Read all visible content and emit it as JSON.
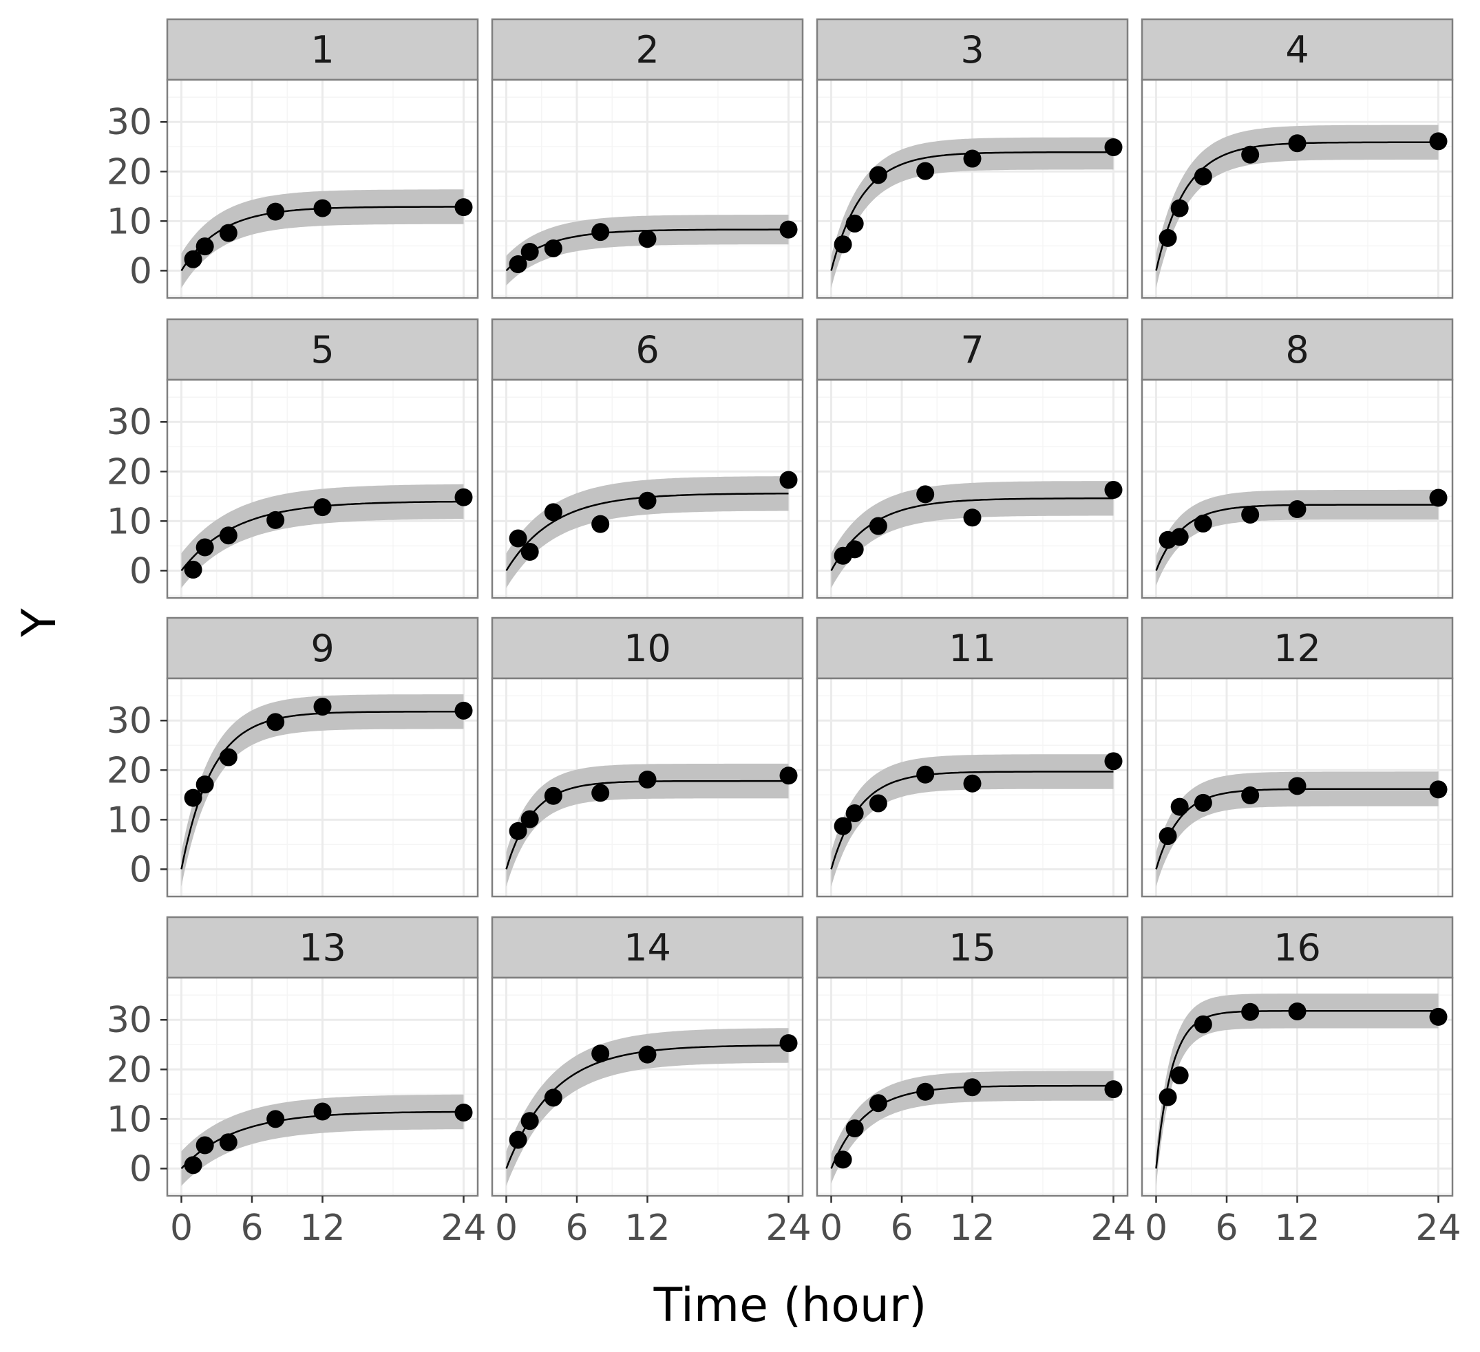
{
  "chart_data": {
    "type": "scatter",
    "layout": "facet_wrap 4x4",
    "xlabel": "Time (hour)",
    "ylabel": "Y",
    "x_ticks": [
      0,
      6,
      12,
      24
    ],
    "y_ticks": [
      0,
      10,
      20,
      30
    ],
    "xlim": [
      -1.2,
      25.2
    ],
    "ylim": [
      -5.5,
      38.5
    ],
    "grid": true,
    "legend": "none",
    "colors": {
      "strip_fill": "#cccccc",
      "panel_border": "#7f7f7f",
      "grid_major": "#ebebeb",
      "grid_minor": "#f5f5f5",
      "ribbon": "#c2c2c2",
      "line": "#000000",
      "points": "#000000"
    },
    "panels": [
      {
        "label": "1",
        "ymax": 12.9,
        "k": 0.3,
        "lo": -3.5,
        "hi": 3.5,
        "x": [
          1,
          2,
          4,
          8,
          12,
          24
        ],
        "y": [
          2.3,
          4.9,
          7.6,
          11.9,
          12.6,
          12.8
        ]
      },
      {
        "label": "2",
        "ymax": 8.3,
        "k": 0.3,
        "lo": -3.0,
        "hi": 3.0,
        "x": [
          1,
          2,
          4,
          8,
          12,
          24
        ],
        "y": [
          1.3,
          3.8,
          4.5,
          7.8,
          6.4,
          8.3
        ]
      },
      {
        "label": "3",
        "ymax": 23.9,
        "k": 0.38,
        "lo": -3.5,
        "hi": 3.0,
        "x": [
          1,
          2,
          4,
          8,
          12,
          24
        ],
        "y": [
          5.3,
          9.5,
          19.3,
          20.1,
          22.6,
          24.9
        ]
      },
      {
        "label": "4",
        "ymax": 25.9,
        "k": 0.4,
        "lo": -3.5,
        "hi": 3.5,
        "x": [
          1,
          2,
          4,
          8,
          12,
          24
        ],
        "y": [
          6.6,
          12.6,
          19.0,
          23.4,
          25.7,
          26.1
        ]
      },
      {
        "label": "5",
        "ymax": 14.0,
        "k": 0.22,
        "lo": -3.5,
        "hi": 3.5,
        "x": [
          1,
          2,
          4,
          8,
          12,
          24
        ],
        "y": [
          0.2,
          4.7,
          7.1,
          10.2,
          12.8,
          14.8
        ]
      },
      {
        "label": "6",
        "ymax": 15.6,
        "k": 0.25,
        "lo": -3.5,
        "hi": 3.5,
        "x": [
          1,
          2,
          4,
          8,
          12,
          24
        ],
        "y": [
          6.5,
          3.8,
          11.8,
          9.4,
          14.1,
          18.3
        ]
      },
      {
        "label": "7",
        "ymax": 14.6,
        "k": 0.3,
        "lo": -3.5,
        "hi": 3.5,
        "x": [
          1,
          2,
          4,
          8,
          12,
          24
        ],
        "y": [
          3.0,
          4.3,
          9.0,
          15.4,
          10.7,
          16.3
        ]
      },
      {
        "label": "8",
        "ymax": 13.3,
        "k": 0.45,
        "lo": -3.0,
        "hi": 3.0,
        "x": [
          1,
          2,
          4,
          8,
          12,
          24
        ],
        "y": [
          6.2,
          6.8,
          9.5,
          11.3,
          12.4,
          14.7
        ]
      },
      {
        "label": "9",
        "ymax": 31.8,
        "k": 0.38,
        "lo": -3.5,
        "hi": 3.5,
        "x": [
          1,
          2,
          4,
          8,
          12,
          24
        ],
        "y": [
          14.4,
          17.1,
          22.6,
          29.7,
          32.8,
          32.0
        ]
      },
      {
        "label": "10",
        "ymax": 17.8,
        "k": 0.45,
        "lo": -3.5,
        "hi": 3.5,
        "x": [
          1,
          2,
          4,
          8,
          12,
          24
        ],
        "y": [
          7.7,
          10.1,
          14.8,
          15.4,
          18.1,
          18.9
        ]
      },
      {
        "label": "11",
        "ymax": 19.7,
        "k": 0.42,
        "lo": -3.5,
        "hi": 3.5,
        "x": [
          1,
          2,
          4,
          8,
          12,
          24
        ],
        "y": [
          8.7,
          11.3,
          13.3,
          19.1,
          17.3,
          21.8
        ]
      },
      {
        "label": "12",
        "ymax": 16.2,
        "k": 0.5,
        "lo": -3.5,
        "hi": 3.5,
        "x": [
          1,
          2,
          4,
          8,
          12,
          24
        ],
        "y": [
          6.7,
          12.6,
          13.4,
          14.9,
          16.8,
          16.1
        ]
      },
      {
        "label": "13",
        "ymax": 11.5,
        "k": 0.22,
        "lo": -3.5,
        "hi": 3.5,
        "x": [
          1,
          2,
          4,
          8,
          12,
          24
        ],
        "y": [
          0.7,
          4.7,
          5.3,
          10.0,
          11.5,
          11.3
        ]
      },
      {
        "label": "14",
        "ymax": 24.9,
        "k": 0.25,
        "lo": -3.5,
        "hi": 3.5,
        "x": [
          1,
          2,
          4,
          8,
          12,
          24
        ],
        "y": [
          5.8,
          9.6,
          14.3,
          23.2,
          23.0,
          25.3
        ]
      },
      {
        "label": "15",
        "ymax": 16.7,
        "k": 0.35,
        "lo": -3.0,
        "hi": 3.0,
        "x": [
          1,
          2,
          4,
          8,
          12,
          24
        ],
        "y": [
          1.8,
          8.1,
          13.2,
          15.5,
          16.4,
          16.0
        ]
      },
      {
        "label": "16",
        "ymax": 31.8,
        "k": 0.75,
        "lo": -3.5,
        "hi": 3.5,
        "x": [
          1,
          2,
          4,
          8,
          12,
          24
        ],
        "y": [
          14.4,
          18.8,
          29.1,
          31.6,
          31.7,
          30.6
        ]
      }
    ]
  }
}
